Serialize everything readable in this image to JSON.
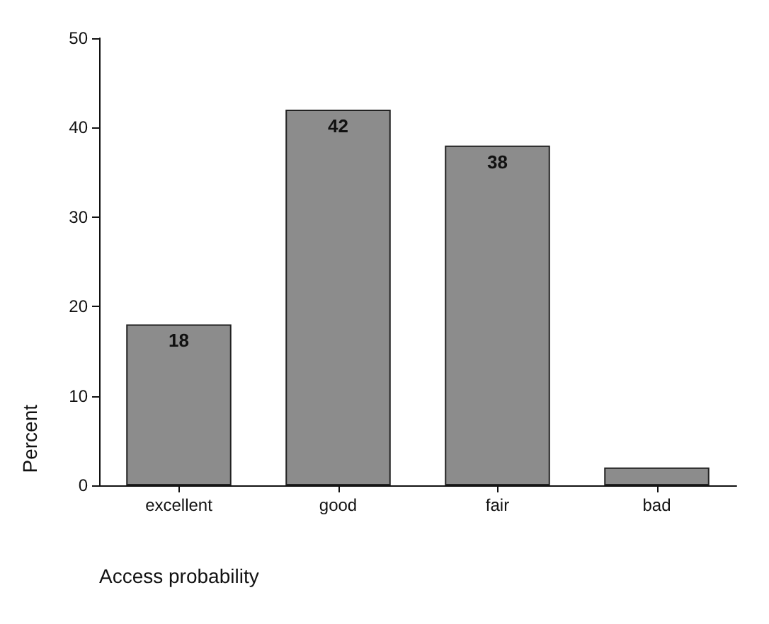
{
  "chart_data": {
    "type": "bar",
    "xlabel": "Access probability",
    "ylabel": "Percent",
    "categories": [
      "excellent",
      "good",
      "fair",
      "bad"
    ],
    "values": [
      18,
      42,
      38,
      2
    ],
    "value_labels": [
      "18",
      "42",
      "38",
      null
    ],
    "color": "#8c8c8c",
    "ylim": [
      0,
      50
    ],
    "yticks": [
      0,
      10,
      20,
      30,
      40,
      50
    ],
    "grid": false
  }
}
